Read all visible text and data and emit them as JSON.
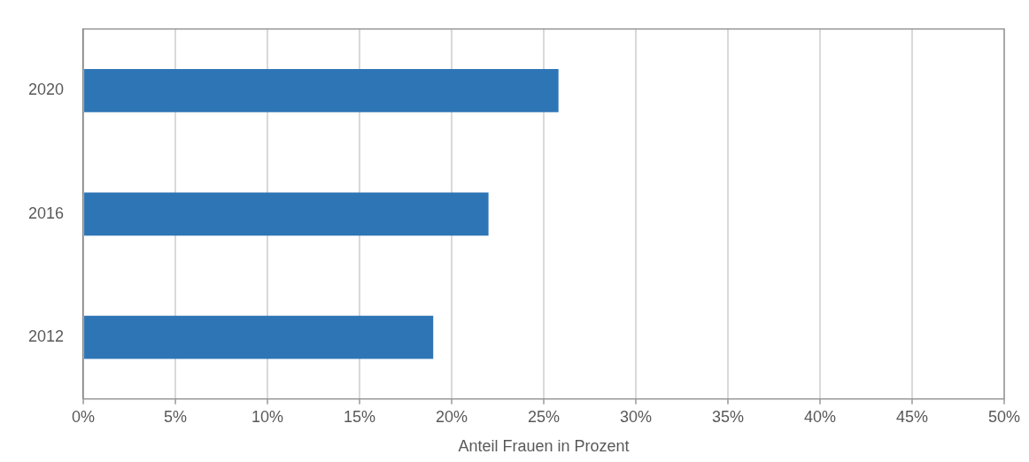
{
  "chart_data": {
    "type": "bar",
    "orientation": "horizontal",
    "categories": [
      "2020",
      "2016",
      "2012"
    ],
    "values": [
      25.8,
      22.0,
      19.0
    ],
    "color": "#2e75b6",
    "xlabel": "Anteil Frauen in Prozent",
    "xlim": [
      0,
      50
    ],
    "xticks": [
      {
        "value": 0,
        "label": "0%"
      },
      {
        "value": 5,
        "label": "5%"
      },
      {
        "value": 10,
        "label": "10%"
      },
      {
        "value": 15,
        "label": "15%"
      },
      {
        "value": 20,
        "label": "20%"
      },
      {
        "value": 25,
        "label": "25%"
      },
      {
        "value": 30,
        "label": "30%"
      },
      {
        "value": 35,
        "label": "35%"
      },
      {
        "value": 40,
        "label": "40%"
      },
      {
        "value": 45,
        "label": "45%"
      },
      {
        "value": 50,
        "label": "50%"
      }
    ],
    "grid": "x",
    "legend": false
  }
}
